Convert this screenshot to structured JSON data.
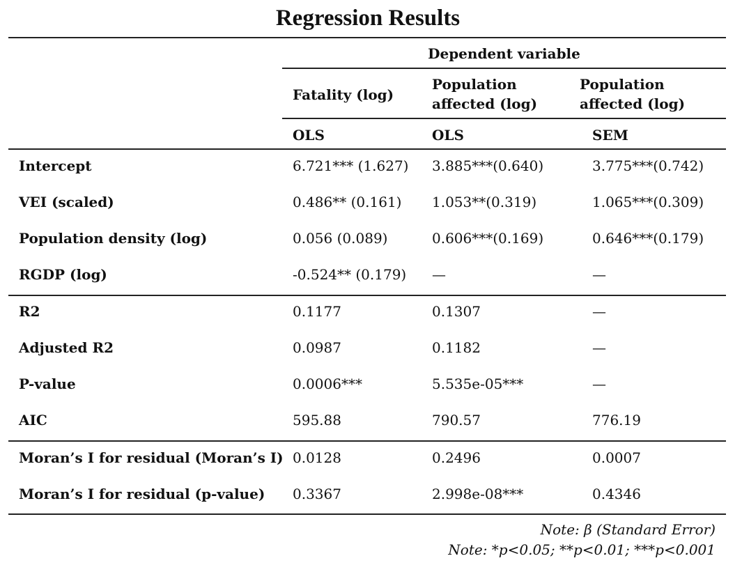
{
  "title": "Regression Results",
  "header": {
    "dependent_variable": "Dependent variable",
    "columns": [
      {
        "name": "Fatality (log)",
        "method": "OLS"
      },
      {
        "name": "Population affected (log)",
        "method": "OLS"
      },
      {
        "name": "Population affected (log)",
        "method": "SEM"
      }
    ]
  },
  "rows": [
    {
      "label": "Intercept",
      "values": [
        "6.721*** (1.627)",
        "3.885***(0.640)",
        "3.775***(0.742)"
      ]
    },
    {
      "label": "VEI (scaled)",
      "values": [
        "0.486** (0.161)",
        "1.053**(0.319)",
        "1.065***(0.309)"
      ]
    },
    {
      "label": "Population density (log)",
      "values": [
        "0.056 (0.089)",
        "0.606***(0.169)",
        "0.646***(0.179)"
      ]
    },
    {
      "label": "RGDP (log)",
      "values": [
        "-0.524** (0.179)",
        "—",
        "—"
      ]
    },
    {
      "label": "R2",
      "values": [
        "0.1177",
        "0.1307",
        "—"
      ]
    },
    {
      "label": "Adjusted R2",
      "values": [
        "0.0987",
        "0.1182",
        "—"
      ]
    },
    {
      "label": "P-value",
      "values": [
        "0.0006***",
        "5.535e-05***",
        "—"
      ]
    },
    {
      "label": "AIC",
      "values": [
        "595.88",
        "790.57",
        "776.19"
      ]
    },
    {
      "label": "Moran’s I for residual (Moran’s I)",
      "values": [
        "0.0128",
        "0.2496",
        "0.0007"
      ]
    },
    {
      "label": "Moran’s I for residual (p-value)",
      "values": [
        "0.3367",
        "2.998e-08***",
        "0.4346"
      ]
    }
  ],
  "notes": [
    "Note: β (Standard Error)",
    "Note: *p<0.05; **p<0.01; ***p<0.001"
  ]
}
